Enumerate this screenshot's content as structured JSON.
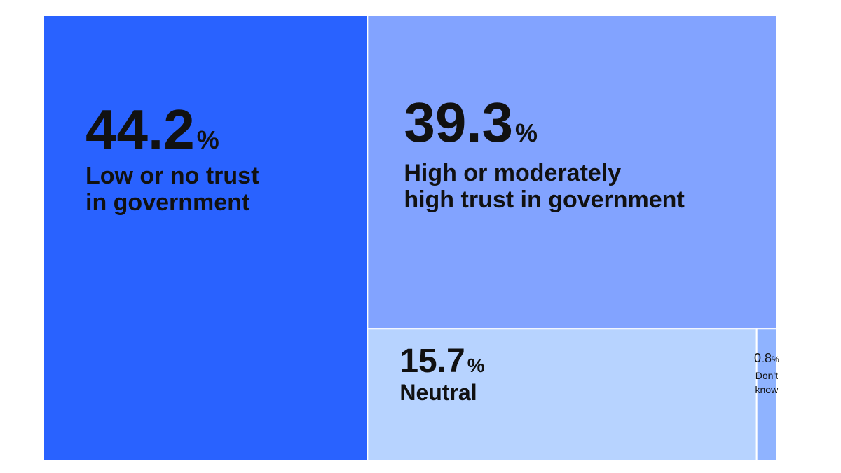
{
  "chart_data": {
    "type": "treemap",
    "percent_symbol": "%",
    "items": [
      {
        "key": "low",
        "value": 44.2,
        "value_label": "44.2",
        "label_lines": [
          "Low or no trust",
          "in government"
        ],
        "color": "#2962ff"
      },
      {
        "key": "high",
        "value": 39.3,
        "value_label": "39.3",
        "label_lines": [
          "High or moderately",
          "high trust in government"
        ],
        "color": "#82a3ff"
      },
      {
        "key": "neutral",
        "value": 15.7,
        "value_label": "15.7",
        "label_lines": [
          "Neutral"
        ],
        "color": "#b7d3ff"
      },
      {
        "key": "dontknow",
        "value": 0.8,
        "value_label": "0.8",
        "label_lines": [
          "Don't",
          "know"
        ],
        "color": "#8fb3ff"
      }
    ]
  }
}
